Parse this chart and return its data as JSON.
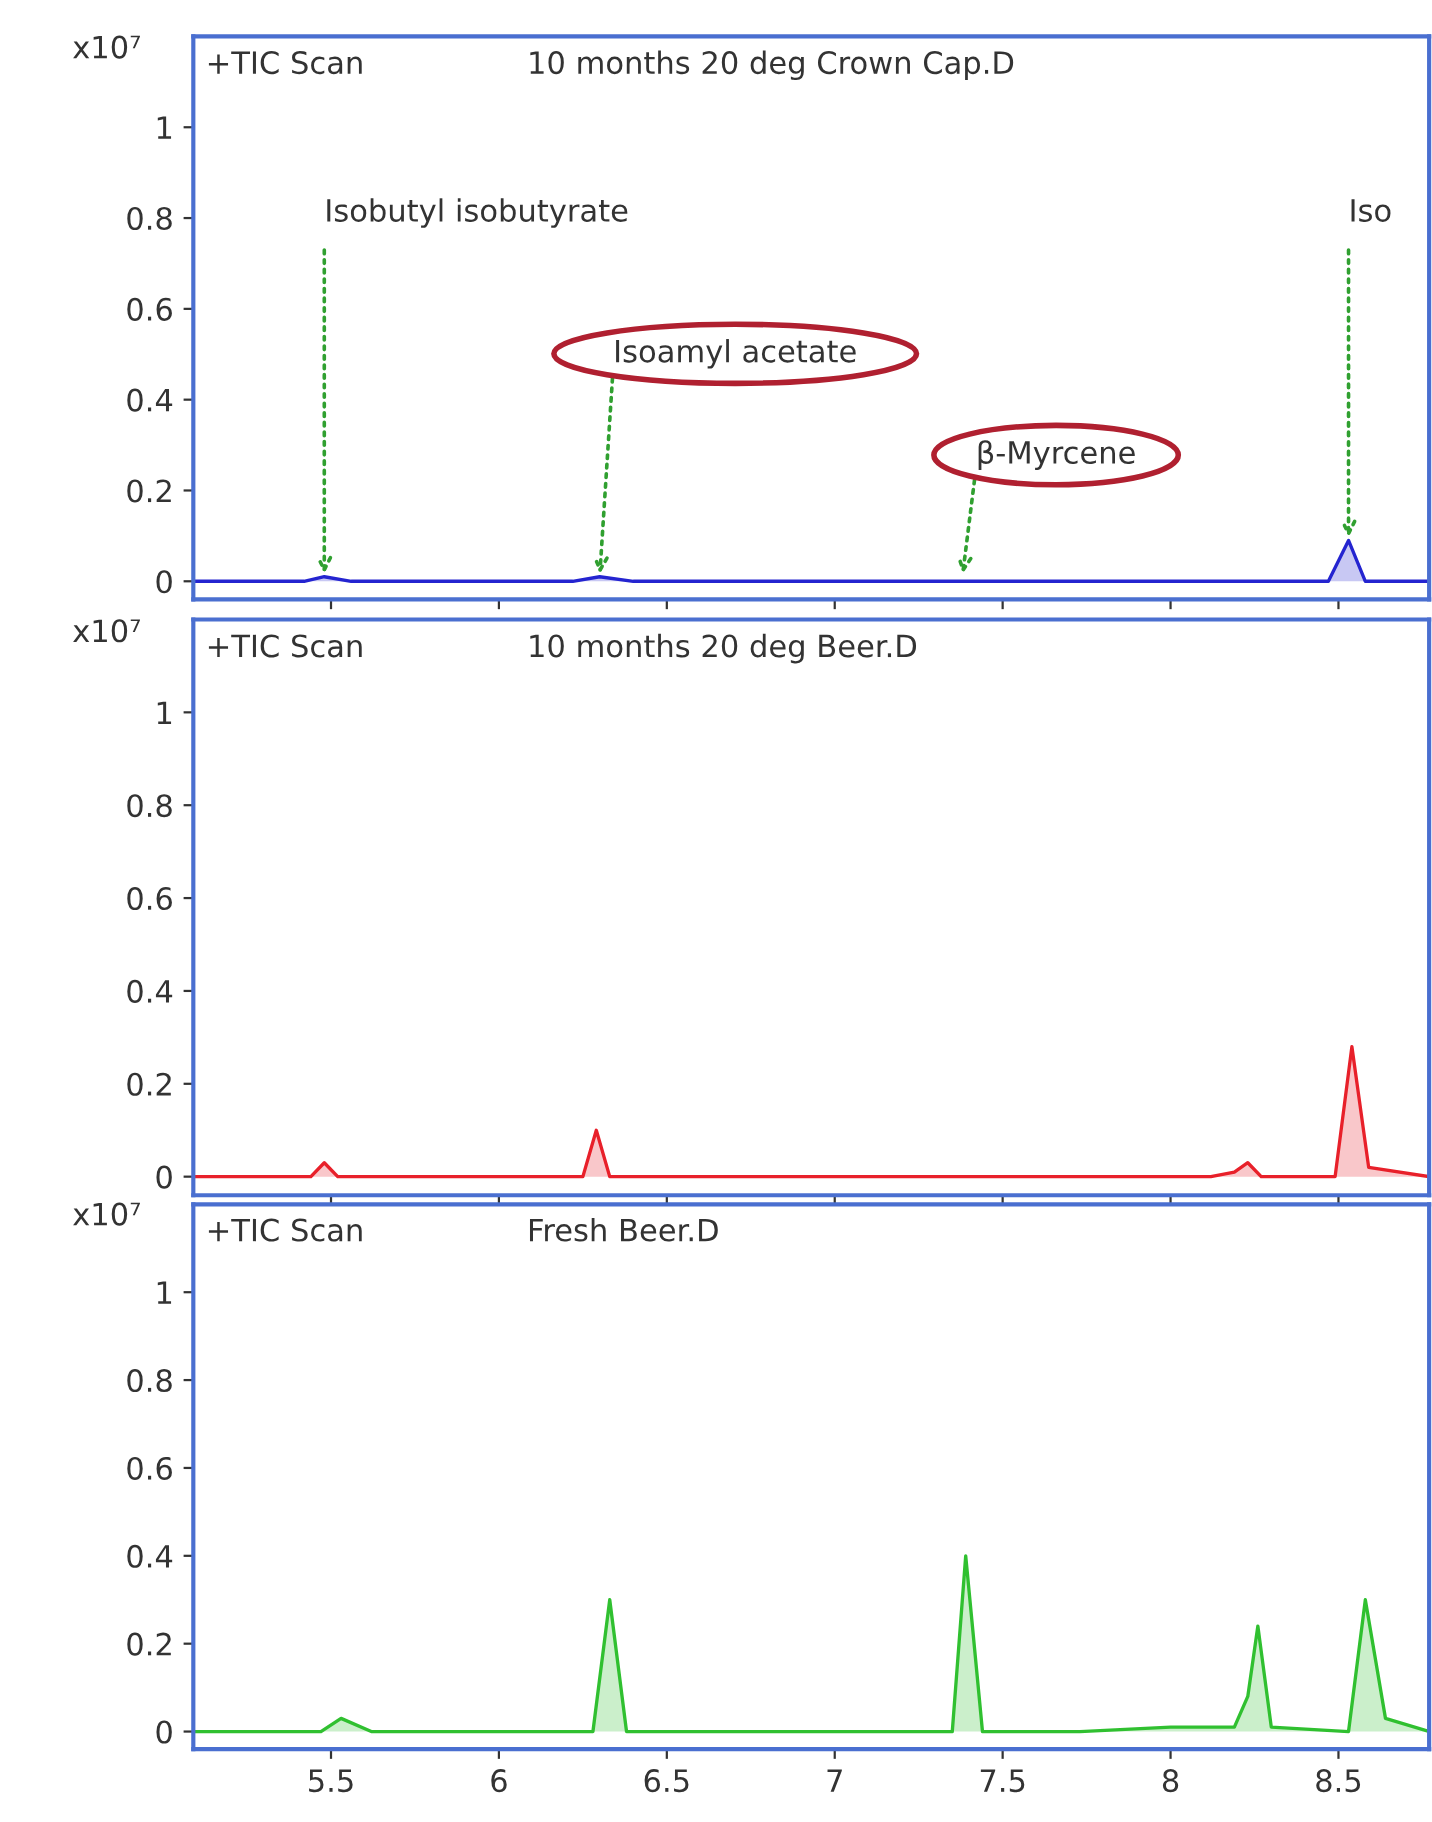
{
  "chart_data": [
    {
      "type": "area",
      "title": "+TIC Scan",
      "subtitle": "10 months 20 deg Crown Cap.D",
      "ylabel": "x10⁷",
      "xlim": [
        5.09,
        8.77
      ],
      "ylim": [
        -0.04,
        1.2
      ],
      "yticks": [
        0,
        0.2,
        0.4,
        0.6,
        0.8,
        1
      ],
      "xticks": [
        5.5,
        6,
        6.5,
        7,
        7.5,
        8,
        8.5
      ],
      "tick_labels": "y",
      "grid": false,
      "series": [
        {
          "color": "#2424d0",
          "x": [
            5.09,
            5.42,
            5.48,
            5.56,
            6.22,
            6.3,
            6.4,
            8.47,
            8.53,
            8.58,
            8.77
          ],
          "values": [
            0,
            0,
            0.01,
            0,
            0,
            0.01,
            0,
            0,
            0.09,
            0,
            0
          ]
        }
      ],
      "annotations": [
        {
          "text": "Isobutyl isobutyrate",
          "x": 5.48,
          "y": 0.01
        },
        {
          "text": "Isoamyl acetate",
          "x": 6.3,
          "y": 0.01
        },
        {
          "text": "β-Myrcene",
          "x": 7.38,
          "y": 0.01
        },
        {
          "text": "Iso",
          "x": 8.53,
          "y": 0.09
        }
      ]
    },
    {
      "type": "area",
      "title": "+TIC Scan",
      "subtitle": "10 months 20 deg Beer.D",
      "ylabel": "x10⁷",
      "xlim": [
        5.09,
        8.77
      ],
      "ylim": [
        -0.04,
        1.2
      ],
      "yticks": [
        0,
        0.2,
        0.4,
        0.6,
        0.8,
        1
      ],
      "xticks": [
        5.5,
        6,
        6.5,
        7,
        7.5,
        8,
        8.5
      ],
      "tick_labels": "y",
      "grid": false,
      "series": [
        {
          "color": "#e8202a",
          "x": [
            5.09,
            5.44,
            5.48,
            5.52,
            6.25,
            6.29,
            6.33,
            8.12,
            8.19,
            8.23,
            8.27,
            8.49,
            8.54,
            8.59,
            8.77
          ],
          "values": [
            0,
            0,
            0.03,
            0,
            0,
            0.1,
            0,
            0,
            0.01,
            0.03,
            0,
            0,
            0.28,
            0.02,
            0
          ]
        }
      ]
    },
    {
      "type": "area",
      "title": "+TIC Scan",
      "subtitle": "Fresh Beer.D",
      "ylabel": "x10⁷",
      "xlim": [
        5.09,
        8.77
      ],
      "ylim": [
        -0.04,
        1.2
      ],
      "yticks": [
        0,
        0.2,
        0.4,
        0.6,
        0.8,
        1
      ],
      "xticks": [
        5.5,
        6,
        6.5,
        7,
        7.5,
        8,
        8.5
      ],
      "grid": false,
      "series": [
        {
          "color": "#30c030",
          "x": [
            5.09,
            5.47,
            5.53,
            5.62,
            6.28,
            6.33,
            6.38,
            7.35,
            7.39,
            7.44,
            7.73,
            8.0,
            8.19,
            8.23,
            8.26,
            8.3,
            8.53,
            8.58,
            8.64,
            8.77
          ],
          "values": [
            0,
            0,
            0.03,
            0,
            0,
            0.3,
            0,
            0,
            0.4,
            0,
            0,
            0.01,
            0.01,
            0.08,
            0.24,
            0.01,
            0,
            0.3,
            0.03,
            0
          ]
        }
      ]
    }
  ]
}
